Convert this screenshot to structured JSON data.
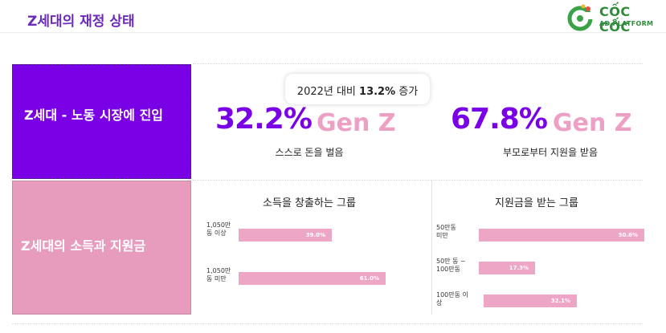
{
  "header": {
    "title": "Z세대의 재정 상태"
  },
  "logo": {
    "name": "CỐC CỐC",
    "sub": "AD PLATFORM",
    "icon": "coccoc-logo-icon"
  },
  "rows": {
    "labor": {
      "label": "Z세대 - 노동 시장에 진입"
    },
    "income": {
      "label": "Z세대의 소득과 지원금"
    }
  },
  "callout": {
    "prefix": "2022년 대비 ",
    "highlight": "13.2%",
    "suffix": " 증가"
  },
  "stats": [
    {
      "value": "32.2%",
      "tag": "Gen Z",
      "caption": "스스로 돈을 벌음"
    },
    {
      "value": "67.8%",
      "tag": "Gen Z",
      "caption": "부모로부터 지원을 받음"
    }
  ],
  "earners": {
    "title": "소득을 창출하는 그룹",
    "bars": [
      {
        "label": "1,050만\n동 이상",
        "value": "39.0%",
        "fraction": 0.39
      },
      {
        "label": "1,050만\n동 미만",
        "value": "61.0%",
        "fraction": 0.61
      }
    ]
  },
  "supported": {
    "title": "지원금을 받는 그룹",
    "bars": [
      {
        "label": "50만동\n미만",
        "value": "50.6%",
        "fraction": 0.506
      },
      {
        "label": "50만 동 ~\n100만동",
        "value": "17.3%",
        "fraction": 0.173
      },
      {
        "label": "100만동 이\n상",
        "value": "32.1%",
        "fraction": 0.321
      }
    ]
  },
  "colors": {
    "purple": "#7a00e6",
    "pink": "#e79bbd",
    "bar": "#eea6c6",
    "title": "#6b2bb8",
    "brand_green": "#2e8b3a"
  }
}
